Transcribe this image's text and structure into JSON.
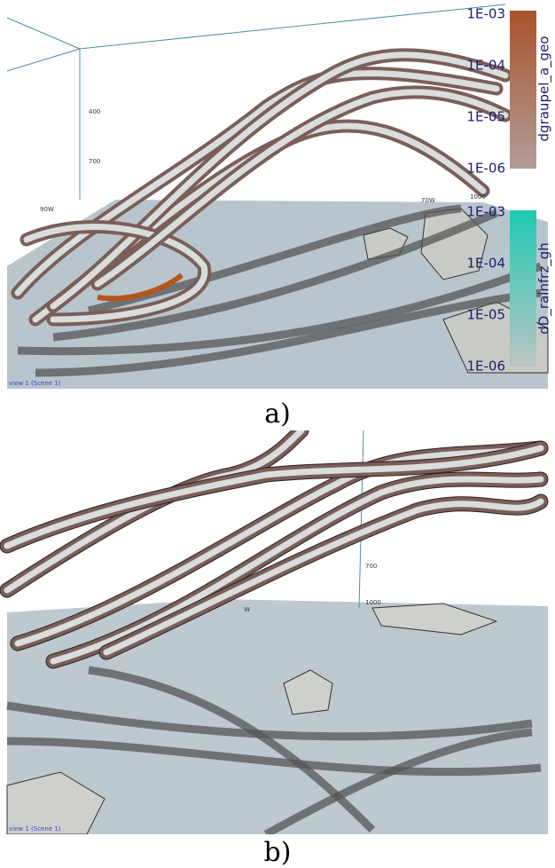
{
  "panel_a": {
    "colorbars": [
      {
        "label": "dgraupel_a_geo",
        "ticks": [
          "1E-03",
          "1E-04",
          "1E-05",
          "1E-06"
        ]
      },
      {
        "label": "dD_rainfrz_gh",
        "ticks": [
          "1E-03",
          "1E-04",
          "1E-05",
          "1E-06"
        ]
      }
    ],
    "axis_labels": [
      "400",
      "700",
      "1000"
    ],
    "map_labels": [
      "90W",
      "70W"
    ],
    "view_label": "view 1 (Scene 1)",
    "caption": "a)"
  },
  "panel_b": {
    "axis_labels": [
      "700",
      "1000"
    ],
    "map_labels": [
      "W"
    ],
    "view_label": "view 1 (Scene 1)",
    "caption": "b)"
  }
}
